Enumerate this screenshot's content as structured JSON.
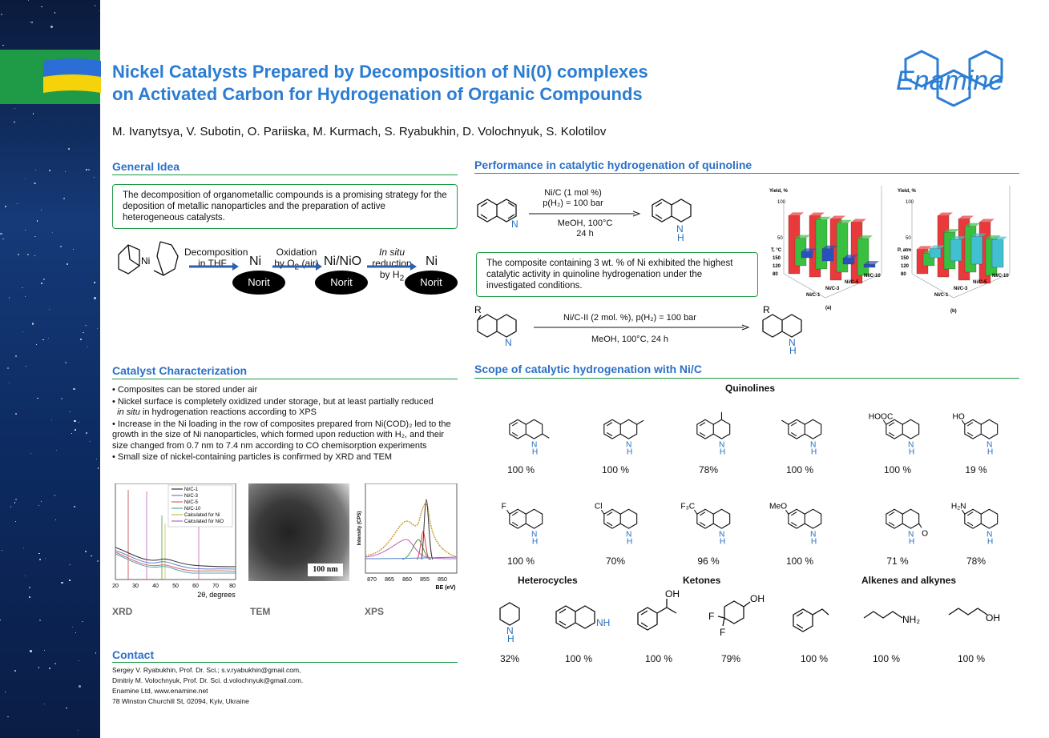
{
  "header": {
    "title_line1": "Nickel Catalysts Prepared by Decomposition of Ni(0) complexes",
    "title_line2": "on Activated Carbon for Hydrogenation of Organic Compounds",
    "authors": "M. Ivanytsya, V. Subotin, O. Pariiska, M. Kurmach, S. Ryabukhin, D. Volochnyuk, S. Kolotilov",
    "logo_text": "Enamine"
  },
  "general_idea": {
    "heading": "General Idea",
    "text": "The decomposition of organometallic compounds is a promising strategy for the deposition of metallic nanoparticles and the preparation of active heterogeneous catalysts.",
    "step1": "Decomposition in THF",
    "step2_a": "Oxidation",
    "step2_b": "by O",
    "step2_sub": "2",
    "step2_c": " (air)",
    "step3_a": "In situ",
    "step3_b": " reduction",
    "step3_c": "by H",
    "step3_sub": "2",
    "ni": "Ni",
    "nio": "Ni/NiO",
    "norit": "Norit"
  },
  "characterization": {
    "heading": "Catalyst Characterization",
    "b1": "• Composites can be stored under air",
    "b2a": "• Nickel surface is completely oxidized under storage, but at least partially reduced",
    "b2b": "in situ",
    "b2c": " in hydrogenation reactions according to XPS",
    "b3": "• Increase in the Ni loading in the row of composites prepared from Ni(COD)₂ led to the growth in the size of Ni nanoparticles, which formed upon reduction with H₂, and their size changed from 0.7 nm to 7.4 nm according to CO chemisorption experiments",
    "b4": "• Small size of nickel-containing particles is confirmed by XRD and TEM",
    "xrd_label": "XRD",
    "tem_label": "TEM",
    "xps_label": "XPS",
    "scale_bar": "100 nm",
    "xrd_xlabel": "2θ, degrees",
    "xps_xlabel": "BE (eV)",
    "xps_ylabel": "Intensity (CPS)",
    "xrd_legend": [
      "Ni/C-1",
      "Ni/C-3",
      "Ni/C-5",
      "Ni/C-10",
      "Calculated for Ni",
      "Calculated for NiO"
    ],
    "xrd_ticks": [
      "20",
      "30",
      "40",
      "50",
      "60",
      "70",
      "80"
    ],
    "xps_ticks": [
      "870",
      "865",
      "860",
      "855",
      "850"
    ]
  },
  "contact": {
    "heading": "Contact",
    "line1": "Sergey V. Ryabukhin, Prof. Dr. Sci.; s.v.ryabukhin@gmail.com,",
    "line2": "Dmitriy M. Volochnyuk, Prof. Dr. Sci. d.volochnyuk@gmail.com.",
    "line3": "Enamine Ltd,  www.enamine.net",
    "line4": "78 Winston Churchill St, 02094, Kyiv, Ukraine"
  },
  "performance": {
    "heading": "Performance in catalytic hydrogenation of quinoline",
    "cond1": "Ni/C (1 mol %)",
    "cond2": "p(H₂) = 100 bar",
    "cond3": "MeOH, 100°C",
    "cond4": "24 h",
    "note": "The composite containing 3 wt. % of Ni exhibited the highest catalytic activity in quinoline hydrogenation under the investigated conditions.",
    "cond5": "Ni/C-II (2 mol. %), p(H₂) = 100 bar",
    "cond6": "MeOH, 100°C, 24 h",
    "r_label": "R",
    "chart_a_label": "(a)",
    "chart_b_label": "(b)"
  },
  "chart_data": [
    {
      "type": "bar",
      "panel": "(a)",
      "ylabel": "Yield, %",
      "xlabel": "T, °C",
      "categories": [
        "Ni/C-1",
        "Ni/C-3",
        "Ni/C-5",
        "Ni/C-10"
      ],
      "temperatures": [
        80,
        120,
        150
      ],
      "series": [
        {
          "name": "150",
          "values": [
            95,
            100,
            100,
            100
          ]
        },
        {
          "name": "120",
          "values": [
            45,
            80,
            80,
            60
          ]
        },
        {
          "name": "80",
          "values": [
            10,
            20,
            10,
            5
          ]
        }
      ],
      "ylim": [
        0,
        100
      ]
    },
    {
      "type": "bar",
      "panel": "(b)",
      "ylabel": "Yield, %",
      "xlabel": "P, atm",
      "categories": [
        "Ni/C-1",
        "Ni/C-3",
        "Ni/C-5",
        "Ni/C-10"
      ],
      "pressures": [
        80,
        120,
        150
      ],
      "series": [
        {
          "name": "150",
          "values": [
            40,
            100,
            100,
            100
          ]
        },
        {
          "name": "120",
          "values": [
            20,
            60,
            75,
            60
          ]
        },
        {
          "name": "80",
          "values": [
            15,
            35,
            45,
            45
          ]
        }
      ],
      "ylim": [
        0,
        100
      ]
    }
  ],
  "scope": {
    "heading": "Scope of catalytic hydrogenation with Ni/C",
    "quinolines": "Quinolines",
    "heterocycles": "Heterocycles",
    "ketones": "Ketones",
    "alkenes": "Alkenes and alkynes",
    "row1": [
      "100 %",
      "100 %",
      "78%",
      "100 %",
      "100 %",
      "19 %"
    ],
    "row2": [
      "100 %",
      "70%",
      "96 %",
      "100 %",
      "71 %",
      "78%"
    ],
    "row3": [
      "32%",
      "100 %",
      "100 %",
      "79%",
      "100 %",
      "100 %",
      "100 %"
    ],
    "subst": {
      "hooc": "HOOC",
      "ho": "HO",
      "f": "F",
      "cl": "Cl",
      "cf3": "F₃C",
      "meo": "MeO",
      "h2n": "H₂N",
      "o": "O",
      "oh": "OH",
      "nh2": "NH₂",
      "nh": "NH",
      "n": "N",
      "h": "H"
    }
  }
}
